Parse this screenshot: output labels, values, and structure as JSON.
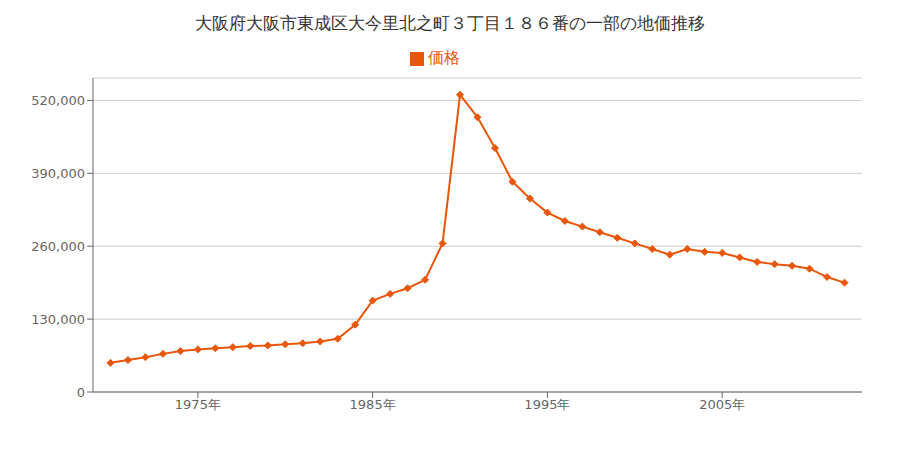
{
  "chart_data": {
    "type": "line",
    "title": "大阪府大阪市東成区大今里北之町３丁目１８６番の一部の地価推移",
    "x": [
      1970,
      1971,
      1972,
      1973,
      1974,
      1975,
      1976,
      1977,
      1978,
      1979,
      1980,
      1981,
      1982,
      1983,
      1984,
      1985,
      1986,
      1987,
      1988,
      1989,
      1990,
      1991,
      1992,
      1993,
      1994,
      1995,
      1996,
      1997,
      1998,
      1999,
      2000,
      2001,
      2002,
      2003,
      2004,
      2005,
      2006,
      2007,
      2008,
      2009,
      2010,
      2011,
      2012
    ],
    "series": [
      {
        "name": "価格",
        "color": "#e8560a",
        "marker": "diamond",
        "values": [
          52000,
          57000,
          62000,
          68000,
          73000,
          76000,
          78000,
          80000,
          82000,
          83000,
          85000,
          87000,
          90000,
          95000,
          120000,
          163000,
          175000,
          185000,
          200000,
          265000,
          530000,
          490000,
          435000,
          375000,
          345000,
          320000,
          305000,
          295000,
          285000,
          275000,
          265000,
          255000,
          245000,
          255000,
          250000,
          248000,
          240000,
          232000,
          228000,
          225000,
          220000,
          205000,
          195000
        ]
      }
    ],
    "xlim": [
      1969,
      2013
    ],
    "xticks": [
      {
        "value": 1975,
        "label": "1975年"
      },
      {
        "value": 1985,
        "label": "1985年"
      },
      {
        "value": 1995,
        "label": "1995年"
      },
      {
        "value": 2005,
        "label": "2005年"
      }
    ],
    "ylim": [
      0,
      560000
    ],
    "yticks": [
      0,
      {
        "value": 130000,
        "label": "130,000"
      },
      {
        "value": 260000,
        "label": "260,000"
      },
      {
        "value": 390000,
        "label": "390,000"
      },
      {
        "value": 520000,
        "label": "520,000"
      }
    ],
    "grid": true,
    "legend": "top"
  }
}
